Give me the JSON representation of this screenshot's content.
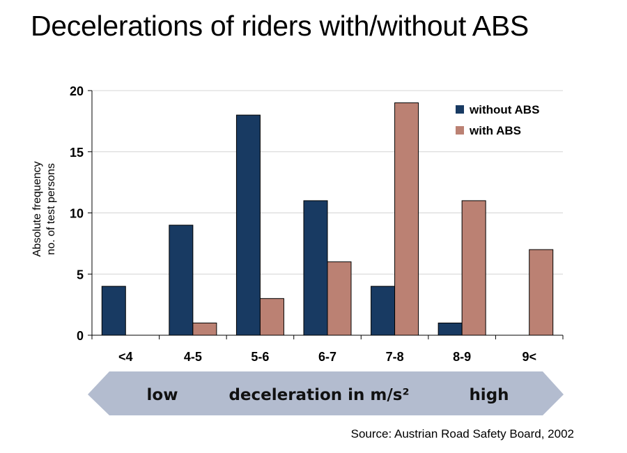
{
  "title": "Decelerations of riders with/without ABS",
  "source": "Source: Austrian Road Safety Board, 2002",
  "arrow": {
    "low_label": "low",
    "center_label": "deceleration in m/s²",
    "high_label": "high",
    "color": "#b3bccf"
  },
  "chart_data": {
    "type": "bar",
    "title": "",
    "xlabel": "deceleration in m/s²",
    "ylabel_lines": [
      "Absolute frequency",
      "no. of test persons"
    ],
    "categories": [
      "<4",
      "4-5",
      "5-6",
      "6-7",
      "7-8",
      "8-9",
      "9<"
    ],
    "series": [
      {
        "name": "without ABS",
        "color": "#183a62",
        "values": [
          4,
          9,
          18,
          11,
          4,
          1,
          0
        ]
      },
      {
        "name": "with ABS",
        "color": "#bb8173",
        "values": [
          0,
          1,
          3,
          6,
          19,
          11,
          7
        ]
      }
    ],
    "ylim": [
      0,
      20
    ],
    "yticks": [
      0,
      5,
      10,
      15,
      20
    ],
    "grid": true,
    "legend_position": "top-right"
  }
}
